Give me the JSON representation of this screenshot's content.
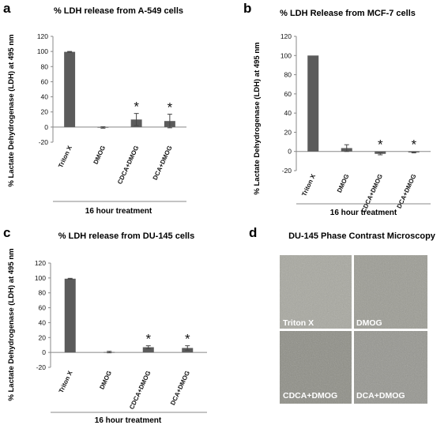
{
  "colors": {
    "bar": "#5b5b5b",
    "axis": "#888888",
    "text": "#111111",
    "image_label": "#ffffff"
  },
  "chart_data": [
    {
      "letter": "a",
      "type": "bar",
      "title": "% LDH release from A-549  cells",
      "ylabel": "% Lactate Dehydrogenase (LDH)  at 495 nm",
      "xlabel": "16 hour treatment",
      "categories": [
        "Triton X",
        "DMOG",
        "CDCA+DMOG",
        "DCA+DMOG"
      ],
      "values": [
        99.5,
        -0.5,
        10,
        8
      ],
      "errors": [
        0.5,
        1,
        8,
        9
      ],
      "significance": [
        "",
        "",
        "*",
        "*"
      ],
      "ylim": [
        -20,
        120
      ],
      "yticks": [
        "-20",
        "0",
        "20",
        "40",
        "60",
        "80",
        "100",
        "120"
      ],
      "grid": false
    },
    {
      "letter": "b",
      "type": "bar",
      "title": "% LDH Release from MCF-7 cells",
      "ylabel": "% Lactate Dehydrogenase (LDH)  at 495 nm",
      "xlabel": "16 hour treatment",
      "categories": [
        "Triton X",
        "DMOG",
        "CDCA+DMOG",
        "DCA+DMOG"
      ],
      "values": [
        100,
        3.5,
        -2.5,
        -1
      ],
      "errors": [
        0,
        3.5,
        1,
        0.5
      ],
      "significance": [
        "",
        "",
        "*",
        "*"
      ],
      "ylim": [
        -20,
        120
      ],
      "yticks": [
        "-20",
        "0",
        "20",
        "40",
        "60",
        "80",
        "100",
        "120"
      ],
      "grid": false
    },
    {
      "letter": "c",
      "type": "bar",
      "title": "% LDH release from DU-145 cells",
      "ylabel": "% Lactate Dehydrogenase (LDH)  at 495 nm",
      "xlabel": "16 hour treatment",
      "categories": [
        "Triton X",
        "DMOG",
        "CDCA+DMOG",
        "DCA+DMOG"
      ],
      "values": [
        99,
        0.5,
        7,
        6
      ],
      "errors": [
        0.5,
        1,
        2,
        3
      ],
      "significance": [
        "",
        "",
        "*",
        "*"
      ],
      "ylim": [
        -20,
        120
      ],
      "yticks": [
        "-20",
        "0",
        "20",
        "40",
        "60",
        "80",
        "100",
        "120"
      ],
      "grid": false
    }
  ],
  "microscopy": {
    "letter": "d",
    "title": "DU-145 Phase Contrast Microscopy",
    "tiles": [
      "Triton X",
      "DMOG",
      "CDCA+DMOG",
      "DCA+DMOG"
    ]
  }
}
